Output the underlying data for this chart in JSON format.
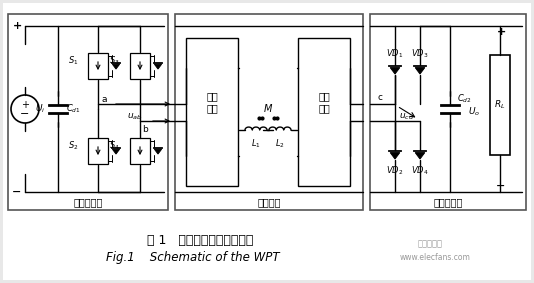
{
  "fig_width": 5.34,
  "fig_height": 2.83,
  "dpi": 100,
  "bg_color": "#e8e8e8",
  "caption_zh": "图 1   无线电能传输系统原理",
  "caption_en": "Fig.1    Schematic of the WPT",
  "box1_label": "高频逆变器",
  "box2_label": "谐振网络",
  "box3_label": "高频整流器",
  "comp_network1": "补偿\n网络",
  "comp_network2": "补偿\n网络",
  "watermark1": "电子发烧友",
  "watermark2": "www.elecfans.com"
}
